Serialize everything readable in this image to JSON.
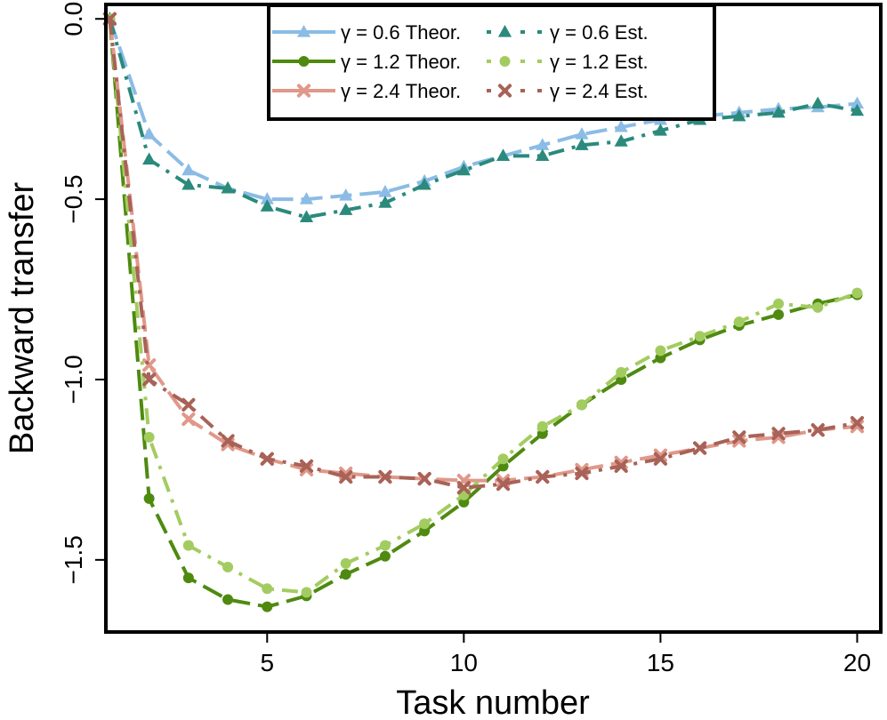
{
  "chart_data": {
    "type": "line",
    "xlabel": "Task number",
    "ylabel": "Backward transfer",
    "xlim": [
      0.9,
      20.6
    ],
    "ylim": [
      -1.7,
      0.04
    ],
    "xticks": [
      5,
      10,
      15,
      20
    ],
    "xtick_labels": [
      "5",
      "10",
      "15",
      "20"
    ],
    "yticks": [
      0.0,
      -0.5,
      -1.0,
      -1.5
    ],
    "ytick_labels": [
      "0.0",
      "−0.5",
      "−1.0",
      "−1.5"
    ],
    "grid": false,
    "legend_position": "top",
    "x": [
      1,
      2,
      3,
      4,
      5,
      6,
      7,
      8,
      9,
      10,
      11,
      12,
      13,
      14,
      15,
      16,
      17,
      18,
      19,
      20
    ],
    "series": [
      {
        "name": "γ = 0.6 Theor.",
        "color": "#8bbce6",
        "marker": "triangle",
        "linestyle": "longdash",
        "values": [
          0.0,
          -0.32,
          -0.42,
          -0.47,
          -0.5,
          -0.5,
          -0.49,
          -0.48,
          -0.45,
          -0.41,
          -0.38,
          -0.35,
          -0.32,
          -0.3,
          -0.28,
          -0.27,
          -0.26,
          -0.25,
          -0.245,
          -0.235
        ]
      },
      {
        "name": "γ = 1.2 Theor.",
        "color": "#4e8a10",
        "marker": "circle",
        "linestyle": "longdash",
        "values": [
          0.0,
          -1.33,
          -1.55,
          -1.61,
          -1.63,
          -1.6,
          -1.54,
          -1.49,
          -1.42,
          -1.34,
          -1.24,
          -1.15,
          -1.07,
          -1.0,
          -0.94,
          -0.89,
          -0.85,
          -0.82,
          -0.79,
          -0.765
        ]
      },
      {
        "name": "γ = 2.4 Theor.",
        "color": "#e0988a",
        "marker": "cross",
        "linestyle": "longdash",
        "values": [
          0.0,
          -0.96,
          -1.11,
          -1.18,
          -1.22,
          -1.25,
          -1.26,
          -1.27,
          -1.275,
          -1.28,
          -1.28,
          -1.27,
          -1.25,
          -1.23,
          -1.21,
          -1.19,
          -1.17,
          -1.16,
          -1.14,
          -1.13
        ]
      },
      {
        "name": "γ = 0.6 Est.",
        "color": "#2a8a7c",
        "marker": "triangle",
        "linestyle": "dashdot",
        "values": [
          0.0,
          -0.39,
          -0.46,
          -0.47,
          -0.52,
          -0.55,
          -0.53,
          -0.51,
          -0.46,
          -0.42,
          -0.38,
          -0.38,
          -0.35,
          -0.34,
          -0.31,
          -0.28,
          -0.27,
          -0.26,
          -0.235,
          -0.255
        ]
      },
      {
        "name": "γ = 1.2 Est.",
        "color": "#a3cc60",
        "marker": "circle",
        "linestyle": "dashdot",
        "values": [
          0.0,
          -1.16,
          -1.46,
          -1.52,
          -1.58,
          -1.59,
          -1.51,
          -1.46,
          -1.4,
          -1.32,
          -1.22,
          -1.13,
          -1.07,
          -0.98,
          -0.92,
          -0.88,
          -0.84,
          -0.79,
          -0.8,
          -0.76
        ]
      },
      {
        "name": "γ = 2.4 Est.",
        "color": "#a86257",
        "marker": "cross",
        "linestyle": "dashdot",
        "values": [
          0.0,
          -1.0,
          -1.07,
          -1.17,
          -1.22,
          -1.24,
          -1.27,
          -1.27,
          -1.275,
          -1.3,
          -1.29,
          -1.27,
          -1.26,
          -1.24,
          -1.22,
          -1.19,
          -1.16,
          -1.15,
          -1.14,
          -1.12
        ]
      }
    ]
  }
}
